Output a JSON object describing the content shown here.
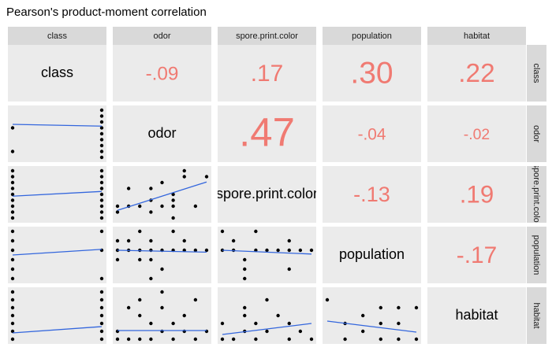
{
  "chart_data": {
    "type": "pairs",
    "title": "Pearson's product-moment correlation",
    "variables": [
      "class",
      "odor",
      "spore.print.color",
      "population",
      "habitat"
    ],
    "ranges": [
      [
        0,
        1
      ],
      [
        0,
        8
      ],
      [
        0,
        8
      ],
      [
        0,
        5
      ],
      [
        0,
        6
      ]
    ],
    "text_color": "#f07a72",
    "point_color": "#000000",
    "fit_color": "#3366dd",
    "correlations": [
      [
        null,
        -0.09,
        0.17,
        0.3,
        0.22
      ],
      [
        null,
        null,
        0.47,
        -0.04,
        -0.02
      ],
      [
        null,
        null,
        null,
        -0.13,
        0.19
      ],
      [
        null,
        null,
        null,
        null,
        -0.17
      ],
      [
        null,
        null,
        null,
        null,
        null
      ]
    ],
    "value_labels": [
      [
        null,
        "-.09",
        ".17",
        ".30",
        ".22"
      ],
      [
        null,
        null,
        ".47",
        "-.04",
        "-.02"
      ],
      [
        null,
        null,
        null,
        "-.13",
        ".19"
      ],
      [
        null,
        null,
        null,
        null,
        "-.17"
      ],
      [
        null,
        null,
        null,
        null,
        null
      ]
    ],
    "scatter": [
      [
        null,
        null,
        null,
        null,
        null
      ],
      [
        {
          "x": [
            0,
            0,
            1,
            1,
            1,
            1,
            1,
            1,
            1,
            1,
            1
          ],
          "y": [
            1,
            5,
            0,
            1,
            2,
            3,
            4,
            5,
            6,
            7,
            8
          ],
          "fit": [
            5.6,
            5.3
          ]
        },
        null,
        null,
        null,
        null
      ],
      [
        {
          "x": [
            0,
            0,
            0,
            0,
            0,
            0,
            0,
            0,
            0,
            1,
            1,
            1,
            1,
            1,
            1,
            1,
            1,
            1
          ],
          "y": [
            0,
            1,
            2,
            3,
            4,
            5,
            6,
            7,
            8,
            0,
            1,
            2,
            3,
            4,
            5,
            6,
            7,
            8
          ],
          "fit": [
            3.7,
            4.5
          ]
        },
        {
          "x": [
            0,
            0,
            1,
            1,
            2,
            3,
            3,
            3,
            4,
            4,
            5,
            5,
            5,
            5,
            6,
            6,
            7,
            8
          ],
          "y": [
            1,
            2,
            2,
            5,
            2,
            1,
            3,
            5,
            2,
            6,
            0,
            2,
            3,
            4,
            7,
            8,
            2,
            7
          ],
          "fit": [
            1.3,
            6.1
          ]
        },
        null,
        null,
        null
      ],
      [
        {
          "x": [
            0,
            0,
            0,
            0,
            0,
            0,
            1,
            1,
            1
          ],
          "y": [
            0,
            1,
            2,
            3,
            4,
            5,
            0,
            3,
            5
          ],
          "fit": [
            2.5,
            3.1
          ]
        },
        {
          "x": [
            0,
            0,
            0,
            1,
            1,
            2,
            2,
            2,
            3,
            3,
            3,
            3,
            4,
            4,
            5,
            5,
            6,
            6,
            7,
            8
          ],
          "y": [
            2,
            3,
            4,
            3,
            4,
            2,
            3,
            5,
            0,
            2,
            3,
            4,
            1,
            3,
            3,
            5,
            3,
            4,
            3,
            3
          ],
          "fit": [
            3.0,
            2.8
          ]
        },
        {
          "x": [
            0,
            0,
            1,
            1,
            2,
            2,
            2,
            3,
            3,
            4,
            5,
            6,
            6,
            6,
            7,
            8
          ],
          "y": [
            3,
            5,
            3,
            4,
            0,
            1,
            2,
            3,
            5,
            3,
            3,
            1,
            3,
            4,
            3,
            3
          ],
          "fit": [
            3.0,
            2.6
          ]
        },
        null,
        null
      ],
      [
        {
          "x": [
            0,
            0,
            0,
            0,
            0,
            0,
            0,
            1,
            1,
            1,
            1,
            1,
            1,
            1
          ],
          "y": [
            0,
            1,
            2,
            3,
            4,
            5,
            6,
            0,
            1,
            2,
            3,
            4,
            5,
            6
          ],
          "fit": [
            0.8,
            1.6
          ]
        },
        {
          "x": [
            0,
            0,
            1,
            1,
            2,
            2,
            2,
            3,
            3,
            4,
            4,
            4,
            5,
            5,
            6,
            6,
            7,
            7,
            8
          ],
          "y": [
            0,
            1,
            0,
            4,
            0,
            3,
            5,
            0,
            2,
            1,
            4,
            6,
            0,
            2,
            1,
            3,
            0,
            5,
            1
          ],
          "fit": [
            1.1,
            1.1
          ]
        },
        {
          "x": [
            0,
            0,
            1,
            2,
            2,
            2,
            3,
            3,
            4,
            4,
            5,
            6,
            6,
            7,
            8
          ],
          "y": [
            0,
            2,
            0,
            1,
            3,
            4,
            0,
            2,
            1,
            5,
            3,
            0,
            2,
            1,
            0
          ],
          "fit": [
            0.6,
            2.0
          ]
        },
        {
          "x": [
            0,
            1,
            1,
            2,
            2,
            3,
            3,
            3,
            4,
            4,
            4,
            5,
            5
          ],
          "y": [
            5,
            0,
            2,
            1,
            3,
            0,
            2,
            4,
            0,
            2,
            4,
            0,
            4
          ],
          "fit": [
            2.3,
            0.9
          ]
        },
        null
      ]
    ]
  }
}
